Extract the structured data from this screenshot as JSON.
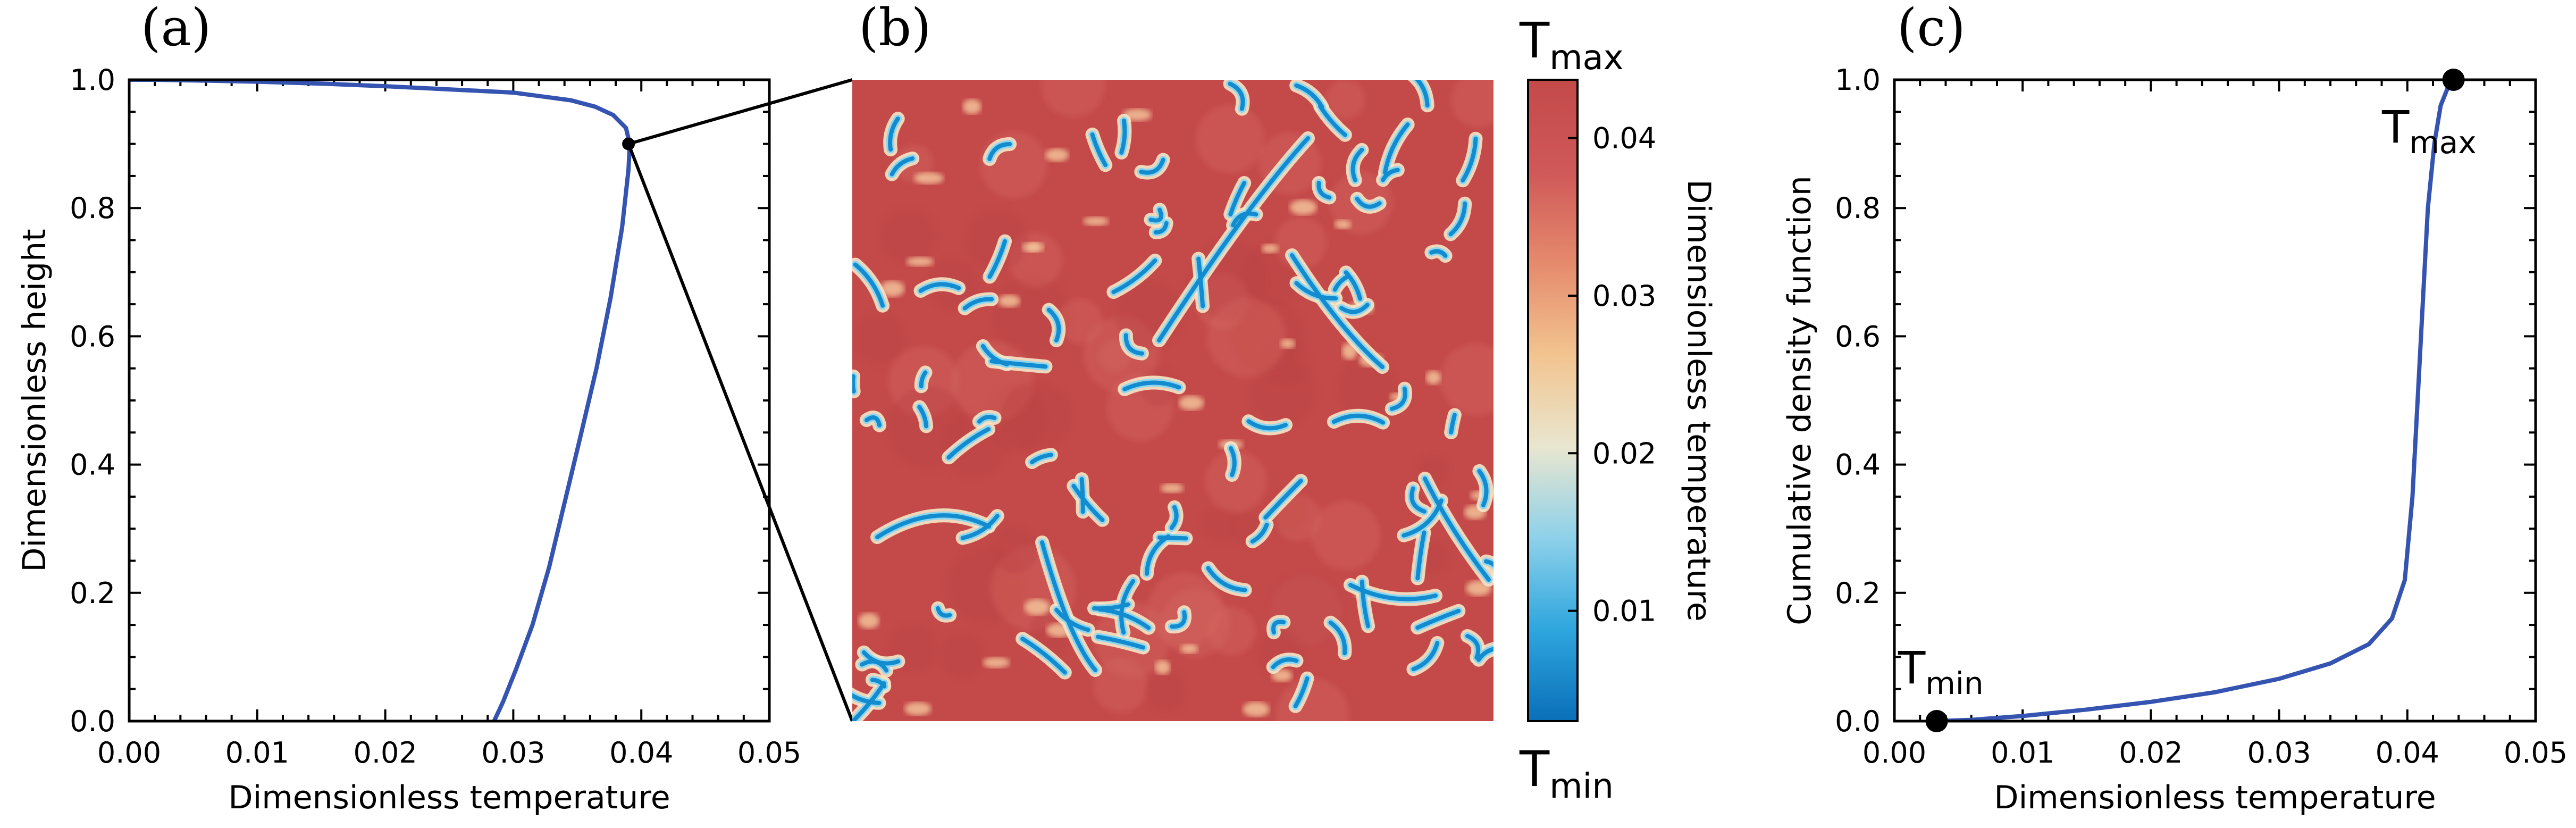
{
  "panels": {
    "a": {
      "label": "(a)"
    },
    "b": {
      "label": "(b)"
    },
    "c": {
      "label": "(c)"
    }
  },
  "colorbar": {
    "top_label_main": "T",
    "top_label_sub": "max",
    "bottom_label_main": "T",
    "bottom_label_sub": "min",
    "title": "Dimensionless temperature",
    "ticks": [
      "0.01",
      "0.02",
      "0.03",
      "0.04"
    ],
    "tick_values": [
      0.01,
      0.02,
      0.03,
      0.04
    ],
    "range": [
      0.003,
      0.0437
    ],
    "colors": [
      "#0a6fb8",
      "#2ea6de",
      "#8ed1ea",
      "#e9e6cf",
      "#f2c48f",
      "#e58a6d",
      "#cf5858",
      "#c44a4a"
    ]
  },
  "markers": {
    "tmin_main": "T",
    "tmin_sub": "min",
    "tmax_main": "T",
    "tmax_sub": "max"
  },
  "chart_data": [
    {
      "type": "line",
      "panel": "a",
      "xlabel": "Dimensionless temperature",
      "ylabel": "Dimensionless height",
      "xlim": [
        0,
        0.05
      ],
      "ylim": [
        0,
        1
      ],
      "xticks": [
        "0.00",
        "0.01",
        "0.02",
        "0.03",
        "0.04",
        "0.05"
      ],
      "yticks": [
        "0.0",
        "0.2",
        "0.4",
        "0.6",
        "0.8",
        "1.0"
      ],
      "line_color": "#3553b0",
      "x": [
        0.0285,
        0.0292,
        0.0302,
        0.0315,
        0.0328,
        0.034,
        0.0352,
        0.0365,
        0.0376,
        0.0385,
        0.039,
        0.0391,
        0.0388,
        0.0378,
        0.0364,
        0.0345,
        0.03,
        0.025,
        0.02,
        0.015,
        0.01,
        0.005,
        0.002,
        0.0
      ],
      "y": [
        0.0,
        0.03,
        0.08,
        0.15,
        0.24,
        0.34,
        0.44,
        0.55,
        0.66,
        0.77,
        0.86,
        0.9,
        0.925,
        0.945,
        0.958,
        0.968,
        0.98,
        0.985,
        0.99,
        0.994,
        0.997,
        0.999,
        1.0,
        1.0
      ],
      "marked_point": {
        "x": 0.039,
        "y": 0.9
      }
    },
    {
      "type": "heatmap",
      "panel": "b",
      "description_of_values": "temperature field at marked height",
      "background_value": 0.043
    },
    {
      "type": "line",
      "panel": "c",
      "xlabel": "Dimensionless temperature",
      "ylabel": "Cumulative density function",
      "xlim": [
        0,
        0.05
      ],
      "ylim": [
        0,
        1
      ],
      "xticks": [
        "0.00",
        "0.01",
        "0.02",
        "0.03",
        "0.04",
        "0.05"
      ],
      "yticks": [
        "0.0",
        "0.2",
        "0.4",
        "0.6",
        "0.8",
        "1.0"
      ],
      "line_color": "#3553b0",
      "x": [
        0.0033,
        0.006,
        0.01,
        0.015,
        0.02,
        0.025,
        0.03,
        0.034,
        0.037,
        0.0388,
        0.0398,
        0.0404,
        0.0408,
        0.0412,
        0.0416,
        0.0421,
        0.0426,
        0.0432,
        0.0436
      ],
      "y": [
        0.0,
        0.002,
        0.008,
        0.018,
        0.03,
        0.045,
        0.066,
        0.09,
        0.12,
        0.16,
        0.22,
        0.35,
        0.5,
        0.65,
        0.8,
        0.9,
        0.96,
        0.99,
        1.0
      ],
      "min_point": {
        "x": 0.0033,
        "y": 0.0
      },
      "max_point": {
        "x": 0.0436,
        "y": 1.0
      }
    }
  ]
}
